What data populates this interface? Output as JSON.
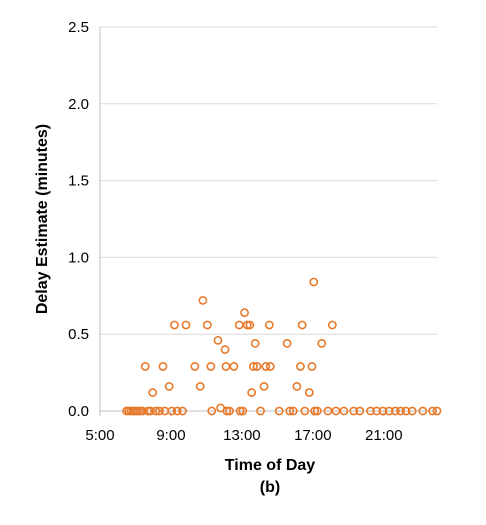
{
  "chart_data": {
    "type": "scatter",
    "title": "",
    "xlabel": "Time of Day",
    "sublabel": "(b)",
    "ylabel": "Delay Estimate (minutes)",
    "xlim": [
      5,
      24
    ],
    "ylim": [
      0,
      2.5
    ],
    "xticks": [
      {
        "value": 5,
        "label": "5:00"
      },
      {
        "value": 9,
        "label": "9:00"
      },
      {
        "value": 13,
        "label": "13:00"
      },
      {
        "value": 17,
        "label": "17:00"
      },
      {
        "value": 21,
        "label": "21:00"
      }
    ],
    "yticks": [
      {
        "value": 0,
        "label": "0.0"
      },
      {
        "value": 0.5,
        "label": "0.5"
      },
      {
        "value": 1,
        "label": "1.0"
      },
      {
        "value": 1.5,
        "label": "1.5"
      },
      {
        "value": 2,
        "label": "2.0"
      },
      {
        "value": 2.5,
        "label": "2.5"
      }
    ],
    "grid": "horizontal",
    "marker_color": "#e8792a",
    "points": [
      {
        "x": 6.5,
        "y": 0
      },
      {
        "x": 6.62,
        "y": 0
      },
      {
        "x": 6.75,
        "y": 0
      },
      {
        "x": 6.88,
        "y": 0
      },
      {
        "x": 7.0,
        "y": 0
      },
      {
        "x": 7.12,
        "y": 0
      },
      {
        "x": 7.25,
        "y": 0
      },
      {
        "x": 7.38,
        "y": 0
      },
      {
        "x": 7.55,
        "y": 0.29
      },
      {
        "x": 7.7,
        "y": 0
      },
      {
        "x": 7.85,
        "y": 0
      },
      {
        "x": 7.97,
        "y": 0.12
      },
      {
        "x": 8.15,
        "y": 0
      },
      {
        "x": 8.35,
        "y": 0
      },
      {
        "x": 8.55,
        "y": 0.29
      },
      {
        "x": 8.65,
        "y": 0
      },
      {
        "x": 8.9,
        "y": 0.16
      },
      {
        "x": 9.05,
        "y": 0
      },
      {
        "x": 9.2,
        "y": 0.56
      },
      {
        "x": 9.35,
        "y": 0
      },
      {
        "x": 9.65,
        "y": 0
      },
      {
        "x": 9.85,
        "y": 0.56
      },
      {
        "x": 10.35,
        "y": 0.29
      },
      {
        "x": 10.65,
        "y": 0.16
      },
      {
        "x": 10.8,
        "y": 0.72
      },
      {
        "x": 11.05,
        "y": 0.56
      },
      {
        "x": 11.25,
        "y": 0.29
      },
      {
        "x": 11.3,
        "y": 0
      },
      {
        "x": 11.65,
        "y": 0.46
      },
      {
        "x": 11.8,
        "y": 0.02
      },
      {
        "x": 12.05,
        "y": 0.4
      },
      {
        "x": 12.1,
        "y": 0.29
      },
      {
        "x": 12.15,
        "y": 0
      },
      {
        "x": 12.3,
        "y": 0
      },
      {
        "x": 12.55,
        "y": 0.29
      },
      {
        "x": 12.85,
        "y": 0.56
      },
      {
        "x": 12.9,
        "y": 0
      },
      {
        "x": 13.05,
        "y": 0
      },
      {
        "x": 13.15,
        "y": 0.64
      },
      {
        "x": 13.3,
        "y": 0.56
      },
      {
        "x": 13.45,
        "y": 0.56
      },
      {
        "x": 13.55,
        "y": 0.12
      },
      {
        "x": 13.65,
        "y": 0.29
      },
      {
        "x": 13.75,
        "y": 0.44
      },
      {
        "x": 13.85,
        "y": 0.29
      },
      {
        "x": 14.05,
        "y": 0
      },
      {
        "x": 14.25,
        "y": 0.16
      },
      {
        "x": 14.35,
        "y": 0.29
      },
      {
        "x": 14.55,
        "y": 0.56
      },
      {
        "x": 14.6,
        "y": 0.29
      },
      {
        "x": 15.1,
        "y": 0
      },
      {
        "x": 15.55,
        "y": 0.44
      },
      {
        "x": 15.7,
        "y": 0
      },
      {
        "x": 15.9,
        "y": 0
      },
      {
        "x": 16.1,
        "y": 0.16
      },
      {
        "x": 16.3,
        "y": 0.29
      },
      {
        "x": 16.4,
        "y": 0.56
      },
      {
        "x": 16.55,
        "y": 0
      },
      {
        "x": 16.8,
        "y": 0.12
      },
      {
        "x": 16.95,
        "y": 0.29
      },
      {
        "x": 17.05,
        "y": 0.84
      },
      {
        "x": 17.1,
        "y": 0
      },
      {
        "x": 17.25,
        "y": 0
      },
      {
        "x": 17.5,
        "y": 0.44
      },
      {
        "x": 17.85,
        "y": 0
      },
      {
        "x": 18.1,
        "y": 0.56
      },
      {
        "x": 18.3,
        "y": 0
      },
      {
        "x": 18.75,
        "y": 0
      },
      {
        "x": 19.3,
        "y": 0
      },
      {
        "x": 19.65,
        "y": 0
      },
      {
        "x": 20.25,
        "y": 0
      },
      {
        "x": 20.6,
        "y": 0
      },
      {
        "x": 20.95,
        "y": 0
      },
      {
        "x": 21.3,
        "y": 0
      },
      {
        "x": 21.65,
        "y": 0
      },
      {
        "x": 21.95,
        "y": 0
      },
      {
        "x": 22.25,
        "y": 0
      },
      {
        "x": 22.6,
        "y": 0
      },
      {
        "x": 23.2,
        "y": 0
      },
      {
        "x": 23.75,
        "y": 0
      },
      {
        "x": 24.0,
        "y": 0
      }
    ]
  }
}
